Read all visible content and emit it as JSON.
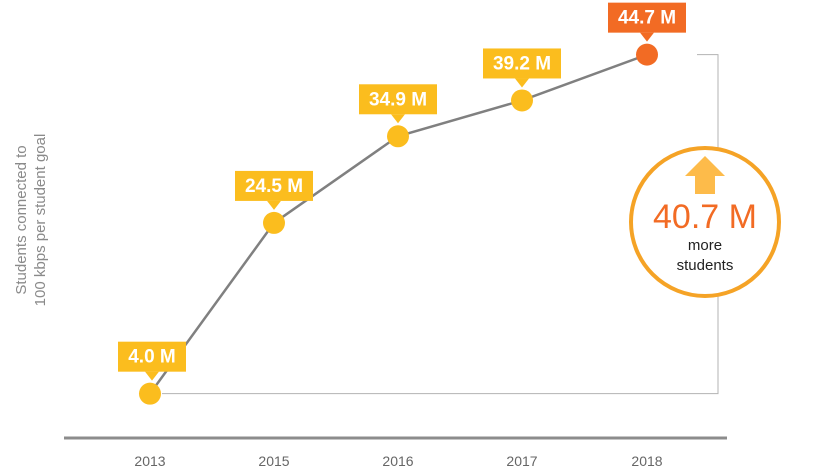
{
  "chart_data": {
    "type": "line",
    "ylabel_lines": [
      "Students connected to",
      "100 kbps per student goal"
    ],
    "x": [
      "2013",
      "2015",
      "2016",
      "2017",
      "2018"
    ],
    "values": [
      4.0,
      24.5,
      34.9,
      39.2,
      44.7
    ],
    "data_labels": [
      "4.0 M",
      "24.5 M",
      "34.9 M",
      "39.2 M",
      "44.7 M"
    ],
    "ylim": [
      0,
      50
    ],
    "callout": {
      "value": "40.7 M",
      "line1": "more",
      "line2": "students"
    }
  },
  "colors": {
    "point": "#fbbd1e",
    "label_bg": "#fbbd1e",
    "highlight": "#f26b24",
    "line": "#808080",
    "axis": "#8c8c8c",
    "callout_ring": "#f5a326",
    "callout_arrow": "#fdbb4a"
  }
}
